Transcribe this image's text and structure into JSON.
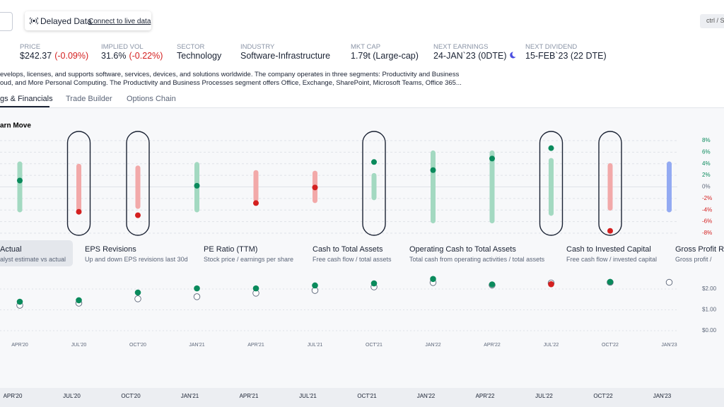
{
  "header": {
    "live_badge": "Delayed Data",
    "live_link": "Connect to live data",
    "shortcut": "ctrl / S"
  },
  "stats": [
    {
      "label": "PRICE",
      "value": "$242.37",
      "change": "(-0.09%)"
    },
    {
      "label": "IMPLIED VOL",
      "value": "31.6%",
      "change": "(-0.22%)"
    },
    {
      "label": "SECTOR",
      "value": "Technology"
    },
    {
      "label": "INDUSTRY",
      "value": "Software-Infrastructure"
    },
    {
      "label": "MKT CAP",
      "value": "1.79t (Large-cap)"
    },
    {
      "label": "NEXT EARNINGS",
      "value": "24-JAN`23 (0DTE)"
    },
    {
      "label": "NEXT DIVIDEND",
      "value": "15-FEB`23 (22 DTE)"
    }
  ],
  "description": [
    "evelops, licenses, and supports software, services, devices, and solutions worldwide. The company operates in three segments: Productivity and Business",
    "oud, and More Personal Computing. The Productivity and Business Processes segment offers Office, Exchange, SharePoint, Microsoft Teams, Office 365..."
  ],
  "tabs": {
    "items": [
      "gs & Financials",
      "Trade Builder",
      "Options Chain"
    ],
    "active": 0
  },
  "categories": [
    "APR'20",
    "JUL'20",
    "OCT'20",
    "JAN'21",
    "APR'21",
    "JUL'21",
    "OCT'21",
    "JAN'22",
    "APR'22",
    "JUL'22",
    "OCT'22",
    "JAN'23"
  ],
  "earn_move": {
    "title": "arn Move",
    "ylim": [
      -8,
      8
    ],
    "yticks": [
      {
        "value": 8,
        "label": "8%"
      },
      {
        "value": 6,
        "label": "6%"
      },
      {
        "value": 4,
        "label": "4%"
      },
      {
        "value": 2,
        "label": "2%"
      },
      {
        "value": 0,
        "label": "0%"
      },
      {
        "value": -2,
        "label": "-2%"
      },
      {
        "value": -4,
        "label": "-4%"
      },
      {
        "value": -6,
        "label": "-6%"
      },
      {
        "value": -8,
        "label": "-8%"
      }
    ],
    "high": [
      4.4,
      4.0,
      3.7,
      4.3,
      2.9,
      2.8,
      2.4,
      6.3,
      6.3,
      5.0,
      4.1,
      4.4
    ],
    "low": [
      -4.4,
      -4.3,
      -3.8,
      -4.4,
      -2.6,
      -2.8,
      -2.3,
      -6.3,
      -6.3,
      -5.0,
      -4.1,
      -4.4
    ],
    "move": [
      1.1,
      -4.3,
      -4.9,
      0.2,
      -2.8,
      -0.1,
      4.3,
      2.9,
      4.9,
      6.7,
      -7.6,
      null
    ],
    "bar_colors": [
      "#a3d9c1",
      "#f2a9a9",
      "#f2a9a9",
      "#a3d9c1",
      "#f2a9a9",
      "#f2a9a9",
      "#a3d9c1",
      "#a3d9c1",
      "#a3d9c1",
      "#a3d9c1",
      "#f2a9a9",
      "#93aaf2"
    ],
    "highlight": [
      false,
      true,
      true,
      false,
      false,
      false,
      true,
      false,
      false,
      true,
      true,
      false
    ],
    "up_color": "#0a8a5c",
    "down_color": "#d42020"
  },
  "metrics": {
    "active": 0,
    "items": [
      {
        "title": "Actual",
        "subtitle": "alyst estimate vs actual"
      },
      {
        "title": "EPS Revisions",
        "subtitle": "Up and down EPS revisions last 30d"
      },
      {
        "title": "PE Ratio (TTM)",
        "subtitle": "Stock price / earnings per share"
      },
      {
        "title": "Cash to Total Assets",
        "subtitle": "Free cash flow / total assets"
      },
      {
        "title": "Operating Cash to Total Assets",
        "subtitle": "Total cash from operating activities / total assets"
      },
      {
        "title": "Cash to Invested Capital",
        "subtitle": "Free cash flow / invested capital"
      },
      {
        "title": "Gross Profit Ra",
        "subtitle": "Gross profit / "
      }
    ]
  },
  "eps": {
    "ylim": [
      0,
      2.6
    ],
    "yticks": [
      {
        "value": 2,
        "label": "$2.00"
      },
      {
        "value": 1,
        "label": "$1.00"
      },
      {
        "value": 0,
        "label": "$0.00"
      }
    ],
    "estimate": [
      1.22,
      1.32,
      1.53,
      1.63,
      1.8,
      1.93,
      2.1,
      2.31,
      2.19,
      2.29,
      2.32,
      2.32
    ],
    "actual": [
      1.39,
      1.46,
      1.83,
      2.03,
      2.03,
      2.17,
      2.27,
      2.48,
      2.22,
      2.23,
      2.34,
      null
    ]
  }
}
